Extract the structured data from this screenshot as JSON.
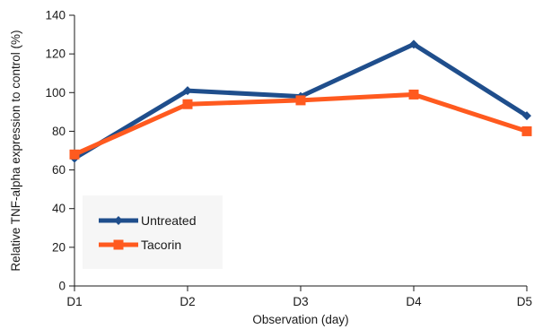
{
  "chart_data": {
    "type": "line",
    "categories": [
      "D1",
      "D2",
      "D3",
      "D4",
      "D5"
    ],
    "series": [
      {
        "name": "Untreated",
        "values": [
          66,
          101,
          98,
          125,
          88
        ],
        "color": "#1f4e8c",
        "marker": "diamond"
      },
      {
        "name": "Tacorin",
        "values": [
          68,
          94,
          96,
          99,
          80
        ],
        "color": "#ff5a1f",
        "marker": "square"
      }
    ],
    "xlabel": "Observation (day)",
    "ylabel": "Relative TNF-alpha expression to control (%)",
    "ylim": [
      0,
      140
    ],
    "yticks": [
      0,
      20,
      40,
      60,
      80,
      100,
      120,
      140
    ],
    "grid": false,
    "legend_position": "bottom-left inside plot"
  }
}
